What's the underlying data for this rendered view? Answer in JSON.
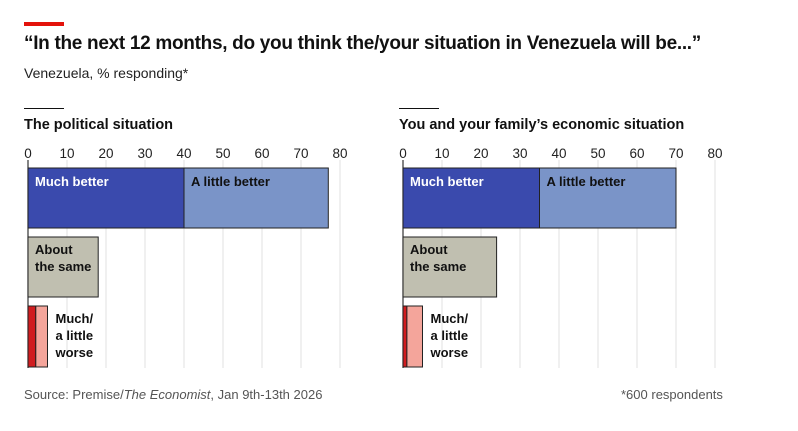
{
  "header": {
    "title": "“In the next 12 months, do you think the/your situation in Venezuela will be...”",
    "subtitle": "Venezuela, % responding*"
  },
  "footer": {
    "source_prefix": "Source: Premise/",
    "source_italic": "The Economist",
    "source_suffix": ", Jan 9th-13th 2026",
    "note": "*600 respondents"
  },
  "colors": {
    "much_better": "#3a4aad",
    "little_better": "#7a94c8",
    "same": "#c0bfb0",
    "much_worse": "#d01c1f",
    "little_worse": "#f4a59b",
    "accent": "#e3120b"
  },
  "chart_data": [
    {
      "type": "bar",
      "title": "The political situation",
      "xlim": [
        0,
        80
      ],
      "ticks": [
        0,
        10,
        20,
        30,
        40,
        50,
        60,
        70,
        80
      ],
      "grid": true,
      "bars": [
        {
          "label": "",
          "segments": [
            {
              "name": "Much better",
              "value": 40
            },
            {
              "name": "A little better",
              "value": 37
            }
          ],
          "labels": [
            "Much better",
            "A little better"
          ]
        },
        {
          "label": "About the same",
          "segments": [
            {
              "name": "About the same",
              "value": 18
            }
          ],
          "labels": [
            "About",
            "the same"
          ]
        },
        {
          "label": "Much/a little worse",
          "segments": [
            {
              "name": "Much worse",
              "value": 2
            },
            {
              "name": "A little worse",
              "value": 3
            }
          ],
          "labels": [
            "Much/",
            "a little",
            "worse"
          ]
        }
      ]
    },
    {
      "type": "bar",
      "title": "You and your family’s economic situation",
      "xlim": [
        0,
        80
      ],
      "ticks": [
        0,
        10,
        20,
        30,
        40,
        50,
        60,
        70,
        80
      ],
      "grid": true,
      "bars": [
        {
          "label": "",
          "segments": [
            {
              "name": "Much better",
              "value": 35
            },
            {
              "name": "A little better",
              "value": 35
            }
          ],
          "labels": [
            "Much better",
            "A little better"
          ]
        },
        {
          "label": "About the same",
          "segments": [
            {
              "name": "About the same",
              "value": 24
            }
          ],
          "labels": [
            "About",
            "the same"
          ]
        },
        {
          "label": "Much/a little worse",
          "segments": [
            {
              "name": "Much worse",
              "value": 1
            },
            {
              "name": "A little worse",
              "value": 4
            }
          ],
          "labels": [
            "Much/",
            "a little",
            "worse"
          ]
        }
      ]
    }
  ]
}
